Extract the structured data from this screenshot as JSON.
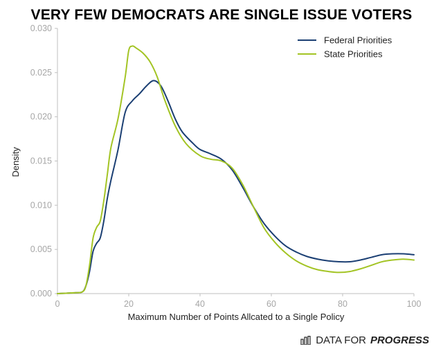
{
  "title": "VERY FEW DEMOCRATS ARE SINGLE ISSUE VOTERS",
  "brand": {
    "text_regular": "DATA FOR",
    "text_bold": "PROGRESS",
    "icon": "bar-chart-icon"
  },
  "chart_data": {
    "type": "line",
    "xlabel": "Maximum Number of Points Allcated to a Single Policy",
    "ylabel": "Density",
    "xlim": [
      0,
      100
    ],
    "ylim": [
      0,
      0.03
    ],
    "xticks": [
      0,
      20,
      40,
      60,
      80,
      100
    ],
    "xtick_labels": [
      "0",
      "20",
      "40",
      "60",
      "80",
      "100"
    ],
    "yticks": [
      0,
      0.005,
      0.01,
      0.015,
      0.02,
      0.025,
      0.03
    ],
    "ytick_labels": [
      "0.000",
      "0.005",
      "0.010",
      "0.015",
      "0.020",
      "0.025",
      "0.030"
    ],
    "grid": false,
    "legend_position": "top-right",
    "series": [
      {
        "name": "Federal Priorities",
        "color": "#1b3f73",
        "x": [
          0,
          5,
          7,
          8,
          9,
          10,
          11,
          12,
          13,
          14,
          15,
          17,
          19,
          21,
          23,
          25,
          27,
          29,
          31,
          33,
          35,
          38,
          40,
          43,
          46,
          49,
          52,
          55,
          58,
          61,
          64,
          67,
          70,
          73,
          76,
          79,
          82,
          85,
          88,
          91,
          94,
          97,
          100
        ],
        "y": [
          0,
          0.0001,
          0.0002,
          0.0009,
          0.0025,
          0.0048,
          0.0057,
          0.0063,
          0.0082,
          0.0108,
          0.0128,
          0.0163,
          0.0205,
          0.0218,
          0.0226,
          0.0235,
          0.0241,
          0.0235,
          0.0218,
          0.0198,
          0.0183,
          0.017,
          0.0163,
          0.0158,
          0.0152,
          0.014,
          0.012,
          0.0098,
          0.0079,
          0.0065,
          0.0054,
          0.0047,
          0.0042,
          0.0039,
          0.0037,
          0.0036,
          0.0036,
          0.0038,
          0.0041,
          0.0044,
          0.0045,
          0.0045,
          0.0044
        ]
      },
      {
        "name": "State Priorities",
        "color": "#a3c424",
        "x": [
          0,
          5,
          7,
          8,
          9,
          10,
          11,
          12,
          13,
          14,
          15,
          17,
          19,
          20,
          21,
          22,
          24,
          26,
          28,
          30,
          33,
          36,
          40,
          43,
          46,
          49,
          52,
          55,
          58,
          61,
          64,
          67,
          70,
          73,
          76,
          79,
          82,
          85,
          88,
          91,
          94,
          97,
          100
        ],
        "y": [
          0,
          0.0001,
          0.0002,
          0.0009,
          0.0032,
          0.0063,
          0.0075,
          0.0082,
          0.0105,
          0.0135,
          0.0165,
          0.0198,
          0.0245,
          0.0275,
          0.028,
          0.0278,
          0.0272,
          0.0262,
          0.0245,
          0.022,
          0.019,
          0.017,
          0.0156,
          0.0152,
          0.015,
          0.0142,
          0.0123,
          0.0098,
          0.0074,
          0.0058,
          0.0046,
          0.0037,
          0.0031,
          0.0027,
          0.0025,
          0.0024,
          0.0025,
          0.0028,
          0.0032,
          0.0036,
          0.0038,
          0.0039,
          0.0038
        ]
      }
    ]
  }
}
